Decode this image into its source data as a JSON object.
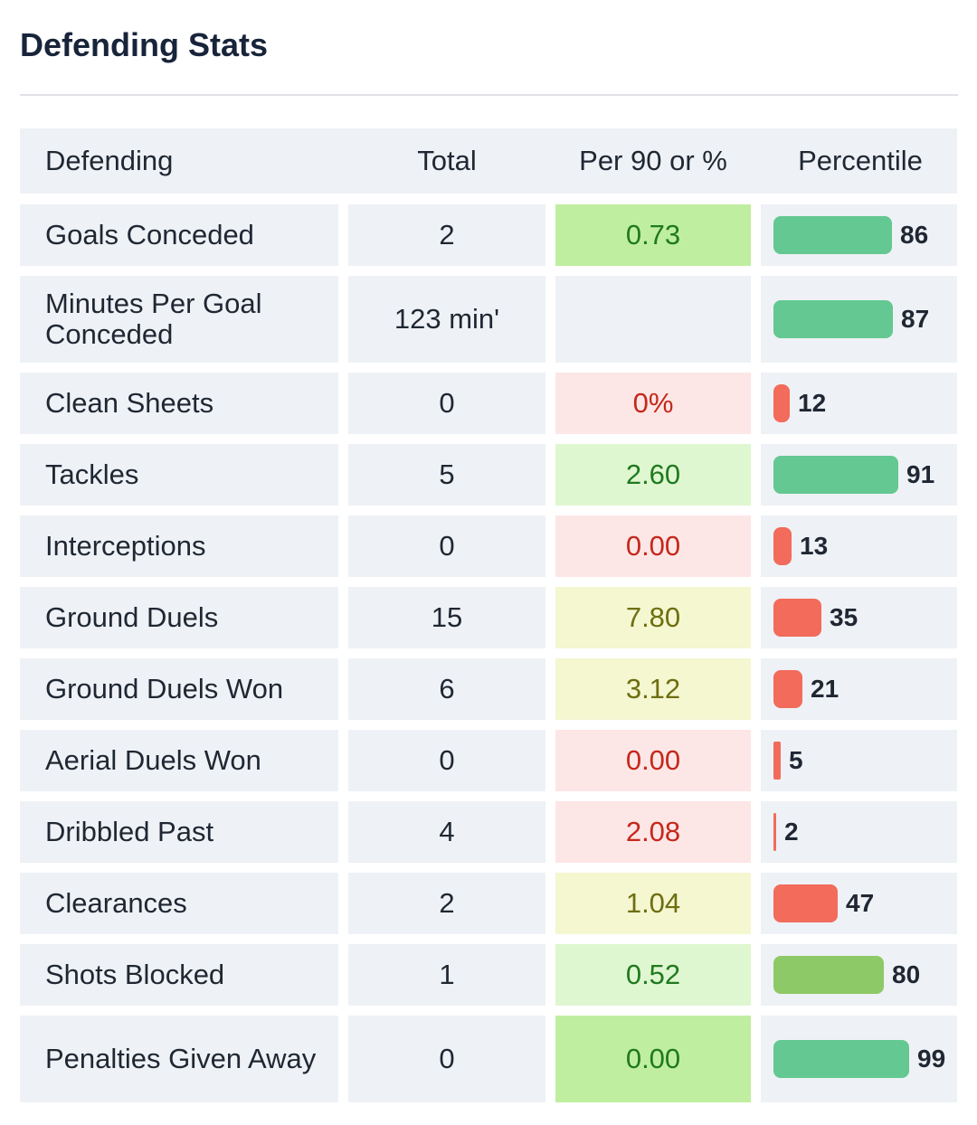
{
  "title": "Defending Stats",
  "columns": [
    "Defending",
    "Total",
    "Per 90 or %",
    "Percentile"
  ],
  "colors": {
    "bar_green": "#63c891",
    "bar_lightgreen": "#8dc966",
    "bar_red": "#f26b5b",
    "bg_green_strong": "#c0eea0",
    "bg_green_light": "#dff7d0",
    "bg_yellow": "#f4f7d0",
    "bg_red": "#fde6e6",
    "text_green": "#1f7a1f",
    "text_olive": "#6e6e10",
    "text_red": "#c4281b"
  },
  "rows": [
    {
      "label": "Goals Conceded",
      "total": "2",
      "per90": "0.73",
      "tone": "green_strong",
      "percentile": 86,
      "bar": "green"
    },
    {
      "label": "Minutes Per Goal Conceded",
      "total": "123 min'",
      "per90": "",
      "tone": "none",
      "percentile": 87,
      "bar": "green"
    },
    {
      "label": "Clean Sheets",
      "total": "0",
      "per90": "0%",
      "tone": "red",
      "percentile": 12,
      "bar": "red"
    },
    {
      "label": "Tackles",
      "total": "5",
      "per90": "2.60",
      "tone": "green_light",
      "percentile": 91,
      "bar": "green"
    },
    {
      "label": "Interceptions",
      "total": "0",
      "per90": "0.00",
      "tone": "red",
      "percentile": 13,
      "bar": "red"
    },
    {
      "label": "Ground Duels",
      "total": "15",
      "per90": "7.80",
      "tone": "yellow",
      "percentile": 35,
      "bar": "red"
    },
    {
      "label": "Ground Duels Won",
      "total": "6",
      "per90": "3.12",
      "tone": "yellow",
      "percentile": 21,
      "bar": "red"
    },
    {
      "label": "Aerial Duels Won",
      "total": "0",
      "per90": "0.00",
      "tone": "red",
      "percentile": 5,
      "bar": "red"
    },
    {
      "label": "Dribbled Past",
      "total": "4",
      "per90": "2.08",
      "tone": "red",
      "percentile": 2,
      "bar": "red"
    },
    {
      "label": "Clearances",
      "total": "2",
      "per90": "1.04",
      "tone": "yellow",
      "percentile": 47,
      "bar": "red"
    },
    {
      "label": "Shots Blocked",
      "total": "1",
      "per90": "0.52",
      "tone": "green_light",
      "percentile": 80,
      "bar": "lightgreen"
    },
    {
      "label": "Penalties Given Away",
      "total": "0",
      "per90": "0.00",
      "tone": "green_strong",
      "percentile": 99,
      "bar": "green"
    }
  ]
}
